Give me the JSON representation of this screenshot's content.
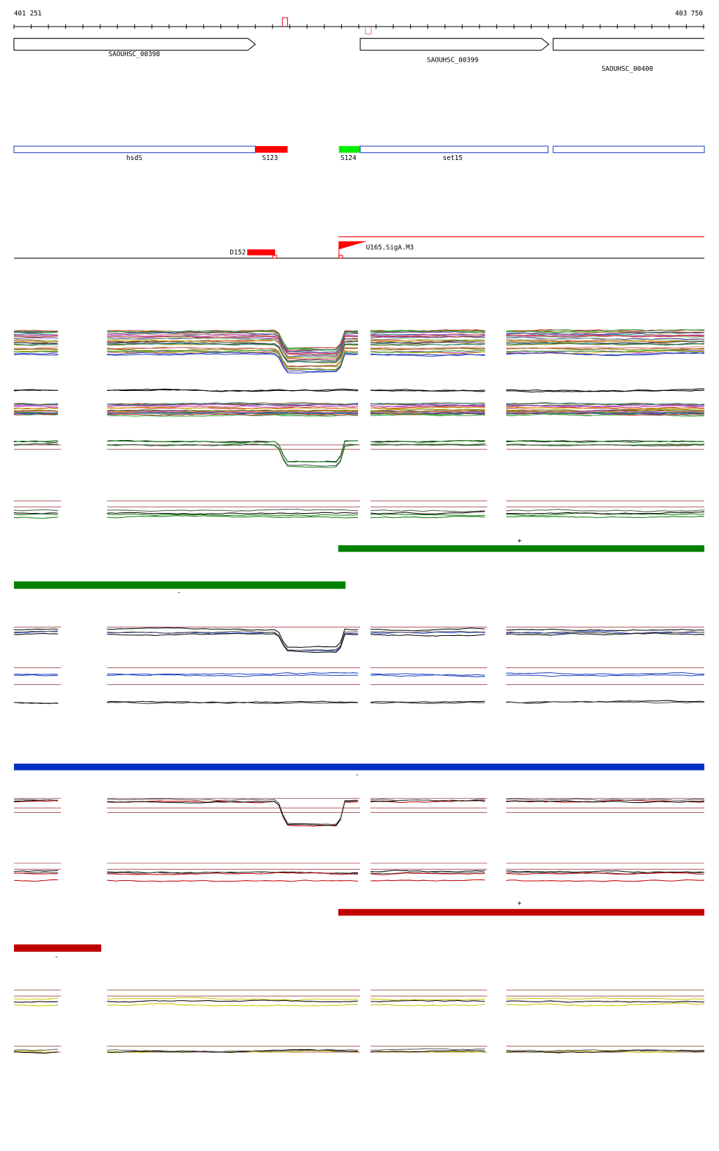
{
  "ruler": {
    "start": "401 251",
    "end": "403 750"
  },
  "genes": [
    {
      "label": "SAOUHSC_00398"
    },
    {
      "label": "SAOUHSC_00399"
    },
    {
      "label": "SAOUHSC_00400"
    }
  ],
  "features": [
    {
      "label": "hsdS"
    },
    {
      "label": "S123"
    },
    {
      "label": "S124"
    },
    {
      "label": "set15"
    }
  ],
  "promoters": [
    {
      "label": "D152"
    },
    {
      "label": "U165.SigA.M3"
    }
  ],
  "strand_labels": [
    "+",
    "-",
    "-",
    "+",
    "-"
  ]
}
